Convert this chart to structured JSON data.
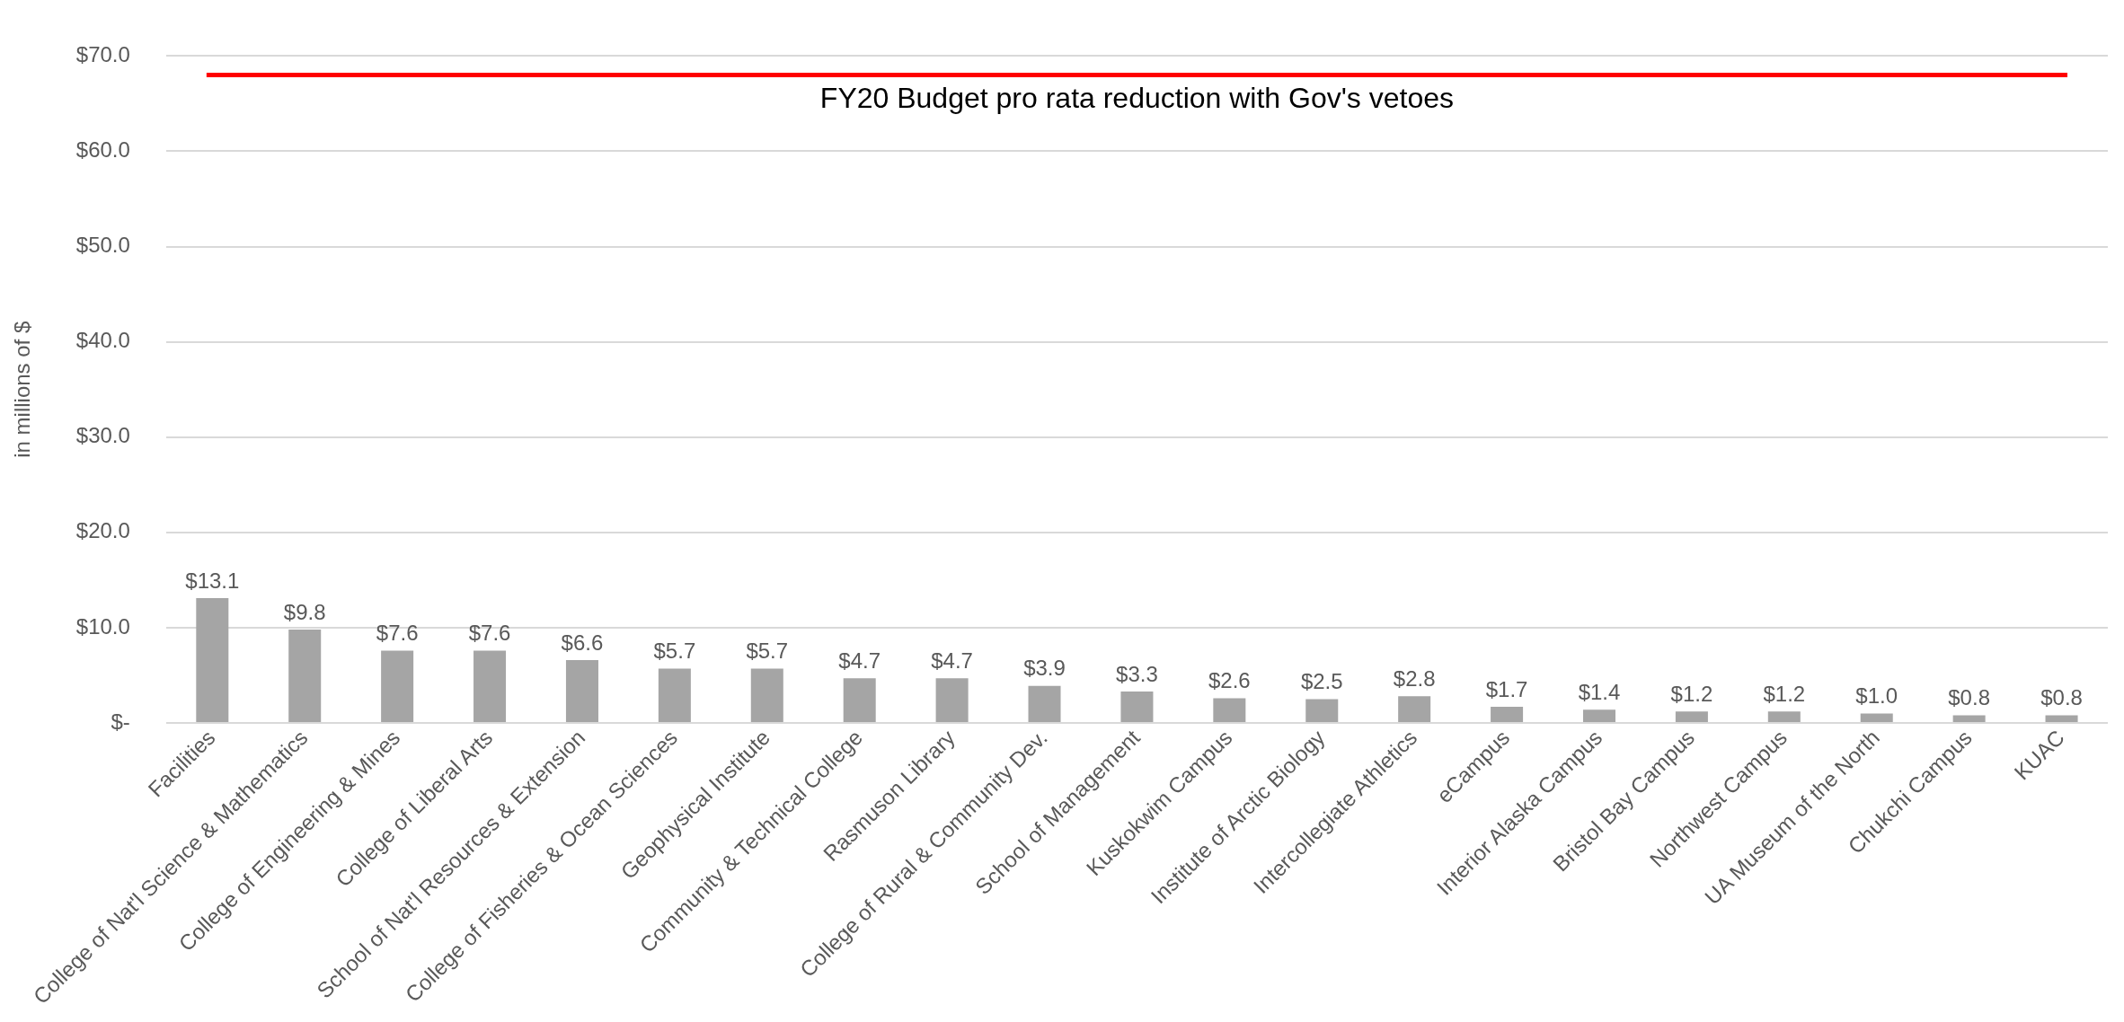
{
  "chart_data": {
    "type": "bar",
    "ylabel": "in millions of $",
    "categories": [
      "Facilities",
      "College of Nat'l Science & Mathematics",
      "College of Engineering & Mines",
      "College of Liberal Arts",
      "School of Nat'l Resources & Extension",
      "College of Fisheries & Ocean Sciences",
      "Geophysical Institute",
      "Community & Technical College",
      "Rasmuson Library",
      "College of Rural & Community Dev.",
      "School of Management",
      "Kuskokwim Campus",
      "Institute of Arctic Biology",
      "Intercollegiate Athletics",
      "eCampus",
      "Interior Alaska Campus",
      "Bristol Bay Campus",
      "Northwest Campus",
      "UA Museum of the North",
      "Chukchi Campus",
      "KUAC"
    ],
    "values": [
      13.1,
      9.8,
      7.6,
      7.6,
      6.6,
      5.7,
      5.7,
      4.7,
      4.7,
      3.9,
      3.3,
      2.6,
      2.5,
      2.8,
      1.7,
      1.4,
      1.2,
      1.2,
      1.0,
      0.8,
      0.8
    ],
    "value_labels": [
      "$13.1",
      "$9.8",
      "$7.6",
      "$7.6",
      "$6.6",
      "$5.7",
      "$5.7",
      "$4.7",
      "$4.7",
      "$3.9",
      "$3.3",
      "$2.6",
      "$2.5",
      "$2.8",
      "$1.7",
      "$1.4",
      "$1.2",
      "$1.2",
      "$1.0",
      "$0.8",
      "$0.8"
    ],
    "color": "#a5a5a5",
    "ylim": [
      0,
      70
    ],
    "yticks": [
      {
        "value": 0,
        "label": "$-"
      },
      {
        "value": 10,
        "label": "$10.0"
      },
      {
        "value": 20,
        "label": "$20.0"
      },
      {
        "value": 30,
        "label": "$30.0"
      },
      {
        "value": 40,
        "label": "$40.0"
      },
      {
        "value": 50,
        "label": "$50.0"
      },
      {
        "value": 60,
        "label": "$60.0"
      },
      {
        "value": 70,
        "label": "$70.0"
      }
    ],
    "grid": "y",
    "legend": false,
    "ref_lines": [
      {
        "axis": "y",
        "value": 68,
        "label": "FY20 Budget pro rata reduction with Gov's vetoes",
        "color": "#ff0000"
      }
    ]
  }
}
